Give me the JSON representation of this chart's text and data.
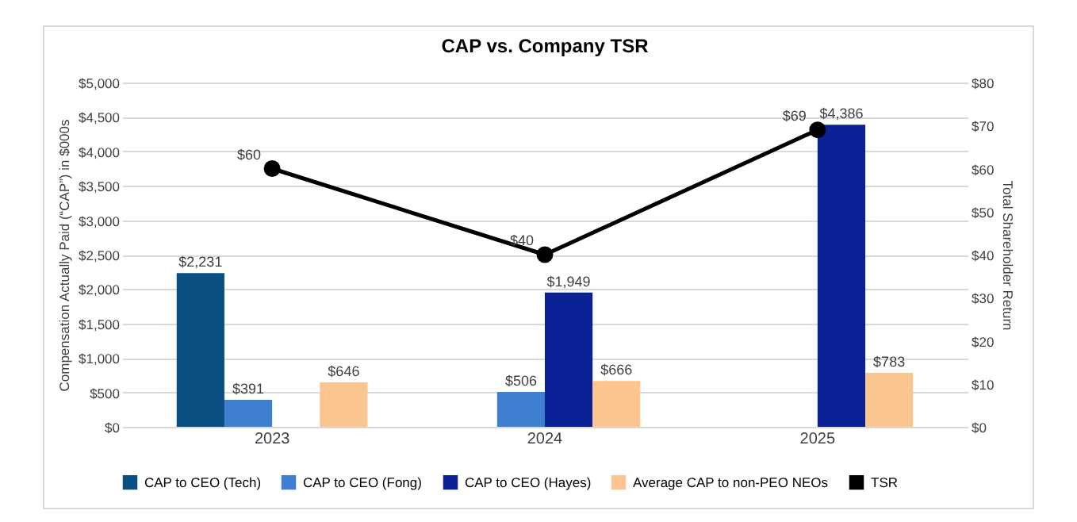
{
  "chart_data": {
    "type": "bar",
    "title": "CAP vs. Company TSR",
    "categories": [
      "2023",
      "2024",
      "2025"
    ],
    "ylabel": "Compensation Actually Paid (“CAP”) in $000s",
    "y2label": "Total Shareholder Return",
    "series": [
      {
        "name": "CAP to CEO (Tech)",
        "color": "#0b4f82",
        "values": [
          2231,
          null,
          null
        ],
        "value_labels": [
          "$2,231",
          null,
          null
        ]
      },
      {
        "name": "CAP to CEO (Fong)",
        "color": "#3f7fcf",
        "values": [
          391,
          506,
          null
        ],
        "value_labels": [
          "$391",
          "$506",
          null
        ]
      },
      {
        "name": "CAP to CEO (Hayes)",
        "color": "#0a2195",
        "values": [
          null,
          1949,
          4386
        ],
        "value_labels": [
          null,
          "$1,949",
          "$4,386"
        ]
      },
      {
        "name": "Average CAP to non-PEO NEOs",
        "color": "#fbc58f",
        "values": [
          646,
          666,
          783
        ],
        "value_labels": [
          "$646",
          "$666",
          "$783"
        ]
      },
      {
        "name": "TSR",
        "type": "line",
        "axis": "y2",
        "color": "#000000",
        "marker": "circle",
        "values": [
          60,
          40,
          69
        ],
        "value_labels": [
          "$60",
          "$40",
          "$69"
        ]
      }
    ],
    "ylim": [
      0,
      5000
    ],
    "yticks": [
      {
        "value": 0,
        "label": "$0"
      },
      {
        "value": 500,
        "label": "$500"
      },
      {
        "value": 1000,
        "label": "$1,000"
      },
      {
        "value": 1500,
        "label": "$1,500"
      },
      {
        "value": 2000,
        "label": "$2,000"
      },
      {
        "value": 2500,
        "label": "$2,500"
      },
      {
        "value": 3000,
        "label": "$3,000"
      },
      {
        "value": 3500,
        "label": "$3,500"
      },
      {
        "value": 4000,
        "label": "$4,000"
      },
      {
        "value": 4500,
        "label": "$4,500"
      },
      {
        "value": 5000,
        "label": "$5,000"
      }
    ],
    "y2lim": [
      0,
      80
    ],
    "y2ticks": [
      {
        "value": 0,
        "label": "$0"
      },
      {
        "value": 10,
        "label": "$10"
      },
      {
        "value": 20,
        "label": "$20"
      },
      {
        "value": 30,
        "label": "$30"
      },
      {
        "value": 40,
        "label": "$40"
      },
      {
        "value": 50,
        "label": "$50"
      },
      {
        "value": 60,
        "label": "$60"
      },
      {
        "value": 70,
        "label": "$70"
      },
      {
        "value": 80,
        "label": "$80"
      }
    ],
    "grid": "y",
    "legend": "bottom"
  }
}
